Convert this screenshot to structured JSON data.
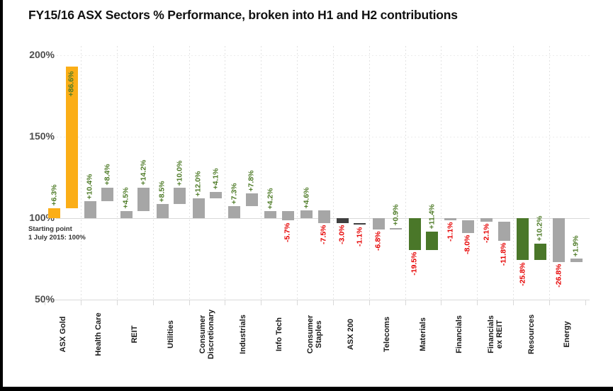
{
  "title": "FY15/16 ASX Sectors % Performance, broken into H1 and H2 contributions",
  "annotation": {
    "line1": "Starting point",
    "line2": "1 July 2015: 100%"
  },
  "colors": {
    "gold": "#FBAE17",
    "gray": "#A6A6A6",
    "dark": "#404040",
    "green": "#4A7729",
    "positive_label": "#4E7B27",
    "negative_label": "#E60000",
    "gridline": "#D9D9D9",
    "axis_text": "#4D4D4D",
    "category_text": "#1A1A1A",
    "frame": "#000000"
  },
  "chart_data": {
    "type": "bar",
    "subtype": "grouped waterfall: each sector shows H1 contribution from 100% baseline, then H2 contribution stacked from the H1 endpoint",
    "title": "FY15/16 ASX Sectors % Performance, broken into H1 and H2 contributions",
    "baseline_pct": 100,
    "ylim": [
      50,
      200
    ],
    "y_ticks": [
      "200%",
      "150%",
      "100%",
      "50%"
    ],
    "y_tick_values": [
      200,
      150,
      100,
      50
    ],
    "grid": "vertical dotted separators between sectors; solid light line at 100%; bottom axis at 50%",
    "legend_position": "none",
    "categories": [
      "ASX Gold",
      "Health Care",
      "REIT",
      "Utilities",
      "Consumer Discretionary",
      "Industrials",
      "Info Tech",
      "Consumer Staples",
      "ASX 200",
      "Telecoms",
      "Materials",
      "Financials",
      "Financials ex REIT",
      "Resources",
      "Energy"
    ],
    "category_lines": [
      [
        "ASX Gold"
      ],
      [
        "Health Care"
      ],
      [
        "REIT"
      ],
      [
        "Utilities"
      ],
      [
        "Consumer",
        "Discretionary"
      ],
      [
        "Industrials"
      ],
      [
        "Info Tech"
      ],
      [
        "Consumer",
        "Staples"
      ],
      [
        "ASX 200"
      ],
      [
        "Telecoms"
      ],
      [
        "Materials"
      ],
      [
        "Financials"
      ],
      [
        "Financials",
        "ex REIT"
      ],
      [
        "Resources"
      ],
      [
        "Energy"
      ]
    ],
    "series": [
      {
        "name": "H1",
        "values": [
          6.3,
          10.4,
          4.5,
          8.5,
          12.0,
          7.3,
          4.2,
          4.6,
          -3.0,
          -6.8,
          -19.5,
          -1.1,
          -2.1,
          -25.8,
          -26.8
        ]
      },
      {
        "name": "H2",
        "values": [
          86.6,
          8.4,
          14.2,
          10.0,
          4.1,
          7.8,
          -5.7,
          -7.5,
          -1.1,
          0.9,
          11.4,
          -8.0,
          -11.8,
          10.2,
          1.9
        ]
      }
    ],
    "value_labels": [
      [
        "+6.3%",
        "+86.6%"
      ],
      [
        "+10.4%",
        "+8.4%"
      ],
      [
        "+4.5%",
        "+14.2%"
      ],
      [
        "+8.5%",
        "+10.0%"
      ],
      [
        "+12.0%",
        "+4.1%"
      ],
      [
        "+7.3%",
        "+7.8%"
      ],
      [
        "+4.2%",
        "-5.7%"
      ],
      [
        "+4.6%",
        "-7.5%"
      ],
      [
        "-3.0%",
        "-1.1%"
      ],
      [
        "-6.8%",
        "+0.9%"
      ],
      [
        "-19.5%",
        "+11.4%"
      ],
      [
        "-1.1%",
        "-8.0%"
      ],
      [
        "-2.1%",
        "-11.8%"
      ],
      [
        "-25.8%",
        "+10.2%"
      ],
      [
        "-26.8%",
        "+1.9%"
      ]
    ],
    "bar_color_keys": [
      "gold",
      "gray",
      "gray",
      "gray",
      "gray",
      "gray",
      "gray",
      "gray",
      "dark",
      "gray",
      "green",
      "gray",
      "gray",
      "green",
      "gray"
    ]
  }
}
